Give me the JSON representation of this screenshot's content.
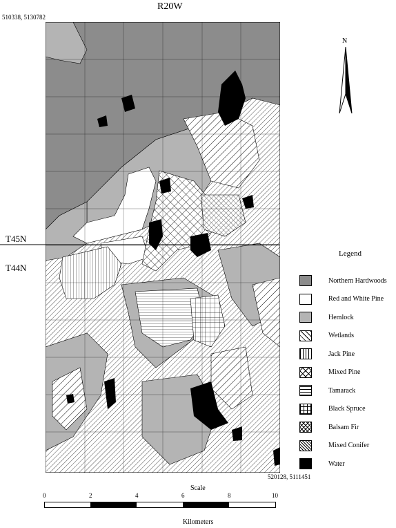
{
  "map": {
    "range_label": "R20W",
    "coord_nw": "510338, 5130782",
    "coord_se": "520128, 5111451",
    "township_north": "T45N",
    "township_south": "T44N",
    "north_label": "N"
  },
  "legend": {
    "title": "Legend",
    "items": [
      {
        "label": "Northern Hardwoods",
        "pattern": "northern-hardwoods",
        "color": "#8c8c8c"
      },
      {
        "label": "Red and White Pine",
        "pattern": "red-white-pine",
        "color": "#ffffff"
      },
      {
        "label": "Hemlock",
        "pattern": "hemlock",
        "color": "#b4b4b4"
      },
      {
        "label": "Wetlands",
        "pattern": "wetlands",
        "color": "#ffffff"
      },
      {
        "label": "Jack Pine",
        "pattern": "jack-pine",
        "color": "#ffffff"
      },
      {
        "label": "Mixed Pine",
        "pattern": "mixed-pine",
        "color": "#ffffff"
      },
      {
        "label": "Tamarack",
        "pattern": "tamarack",
        "color": "#ffffff"
      },
      {
        "label": "Black Spruce",
        "pattern": "black-spruce",
        "color": "#ffffff"
      },
      {
        "label": "Balsam Fir",
        "pattern": "balsam-fir",
        "color": "#ffffff"
      },
      {
        "label": "Mixed Conifer",
        "pattern": "mixed-conifer",
        "color": "#ffffff"
      },
      {
        "label": "Water",
        "pattern": "water",
        "color": "#000000"
      }
    ]
  },
  "scale": {
    "title": "Scale",
    "unit": "Kilometers",
    "ticks": [
      "0",
      "2",
      "4",
      "6",
      "8",
      "10"
    ]
  }
}
